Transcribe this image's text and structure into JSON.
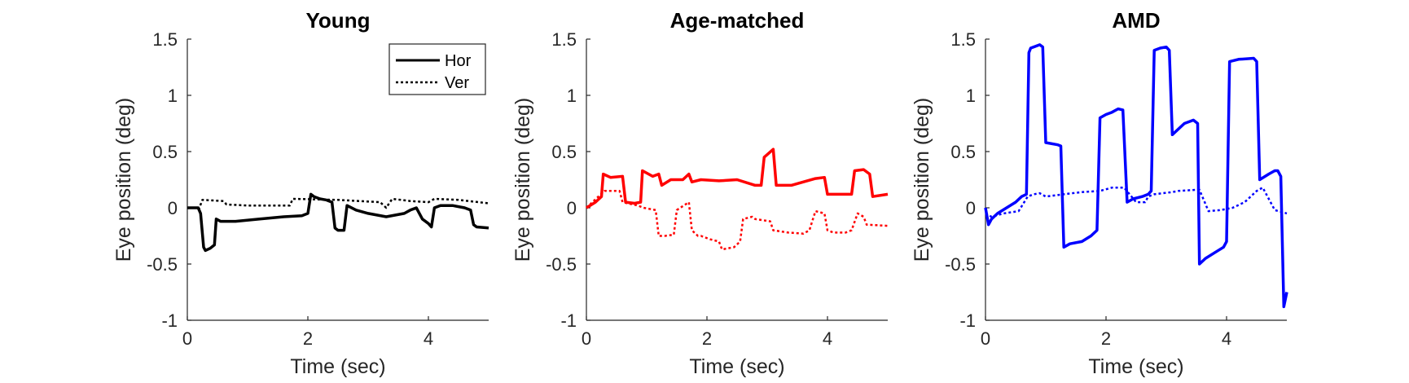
{
  "chart_data": [
    {
      "type": "line",
      "title": "Young",
      "xlabel": "Time (sec)",
      "ylabel": "Eye position (deg)",
      "xlim": [
        0,
        5
      ],
      "ylim": [
        -1,
        1.5
      ],
      "xticks": [
        "0",
        "2",
        "4"
      ],
      "yticks": [
        "-1",
        "-0.5",
        "0",
        "0.5",
        "1",
        "1.5"
      ],
      "grid": false,
      "color": "#000000",
      "legend": {
        "position": "top-right",
        "entries": [
          "Hor",
          "Ver"
        ]
      },
      "series": [
        {
          "name": "Hor",
          "style": "solid",
          "x": [
            0,
            0.18,
            0.22,
            0.27,
            0.3,
            0.38,
            0.45,
            0.48,
            0.55,
            0.8,
            1.2,
            1.6,
            1.9,
            2.0,
            2.05,
            2.1,
            2.2,
            2.3,
            2.4,
            2.45,
            2.5,
            2.6,
            2.65,
            2.8,
            3.0,
            3.3,
            3.6,
            3.7,
            3.8,
            3.9,
            4.0,
            4.05,
            4.1,
            4.2,
            4.4,
            4.6,
            4.7,
            4.75,
            4.8,
            5.0
          ],
          "y": [
            0,
            0.0,
            -0.05,
            -0.35,
            -0.38,
            -0.36,
            -0.33,
            -0.1,
            -0.12,
            -0.12,
            -0.1,
            -0.08,
            -0.07,
            -0.05,
            0.12,
            0.1,
            0.08,
            0.07,
            0.05,
            -0.18,
            -0.2,
            -0.2,
            0.02,
            -0.02,
            -0.05,
            -0.08,
            -0.05,
            -0.02,
            0.0,
            -0.1,
            -0.14,
            -0.17,
            0.0,
            0.02,
            0.02,
            0.0,
            -0.02,
            -0.15,
            -0.17,
            -0.18
          ]
        },
        {
          "name": "Ver",
          "style": "dotted",
          "x": [
            0,
            0.2,
            0.25,
            0.6,
            0.65,
            1.0,
            1.5,
            1.7,
            1.75,
            2.5,
            3.2,
            3.3,
            3.4,
            3.7,
            4.0,
            4.1,
            4.5,
            5.0
          ],
          "y": [
            0.0,
            0.0,
            0.07,
            0.06,
            0.03,
            0.02,
            0.02,
            0.02,
            0.08,
            0.07,
            0.05,
            0.0,
            0.08,
            0.06,
            0.05,
            0.08,
            0.07,
            0.04
          ]
        }
      ]
    },
    {
      "type": "line",
      "title": "Age-matched",
      "xlabel": "Time (sec)",
      "ylabel": "Eye position (deg)",
      "xlim": [
        0,
        5
      ],
      "ylim": [
        -1,
        1.5
      ],
      "xticks": [
        "0",
        "2",
        "4"
      ],
      "yticks": [
        "-1",
        "-0.5",
        "0",
        "0.5",
        "1",
        "1.5"
      ],
      "grid": false,
      "color": "#ff0000",
      "series": [
        {
          "style": "solid",
          "x": [
            0,
            0.15,
            0.25,
            0.28,
            0.4,
            0.6,
            0.65,
            0.8,
            0.9,
            0.93,
            1.1,
            1.2,
            1.25,
            1.4,
            1.6,
            1.7,
            1.75,
            1.9,
            2.2,
            2.5,
            2.8,
            2.9,
            2.95,
            3.1,
            3.15,
            3.4,
            3.8,
            3.95,
            4.0,
            4.3,
            4.4,
            4.45,
            4.6,
            4.7,
            4.75,
            5.0
          ],
          "y": [
            0.0,
            0.05,
            0.1,
            0.3,
            0.27,
            0.28,
            0.05,
            0.04,
            0.05,
            0.33,
            0.28,
            0.3,
            0.2,
            0.25,
            0.25,
            0.3,
            0.23,
            0.25,
            0.24,
            0.25,
            0.2,
            0.2,
            0.45,
            0.52,
            0.2,
            0.2,
            0.26,
            0.27,
            0.12,
            0.12,
            0.12,
            0.33,
            0.34,
            0.3,
            0.1,
            0.12
          ]
        },
        {
          "style": "dotted",
          "x": [
            0,
            0.2,
            0.3,
            0.55,
            0.6,
            0.85,
            0.95,
            1.15,
            1.2,
            1.3,
            1.45,
            1.5,
            1.7,
            1.75,
            1.85,
            1.9,
            2.05,
            2.2,
            2.25,
            2.45,
            2.55,
            2.6,
            2.75,
            2.8,
            3.05,
            3.1,
            3.35,
            3.6,
            3.7,
            3.8,
            3.95,
            4.0,
            4.1,
            4.3,
            4.4,
            4.5,
            4.6,
            4.65,
            5.0
          ],
          "y": [
            0.0,
            0.1,
            0.15,
            0.15,
            0.05,
            0.02,
            0.0,
            -0.02,
            -0.25,
            -0.25,
            -0.24,
            -0.02,
            0.05,
            -0.2,
            -0.25,
            -0.25,
            -0.28,
            -0.3,
            -0.37,
            -0.35,
            -0.3,
            -0.1,
            -0.08,
            -0.1,
            -0.12,
            -0.2,
            -0.22,
            -0.23,
            -0.2,
            -0.03,
            -0.05,
            -0.2,
            -0.22,
            -0.22,
            -0.2,
            -0.05,
            -0.08,
            -0.15,
            -0.16
          ]
        }
      ]
    },
    {
      "type": "line",
      "title": "AMD",
      "xlabel": "Time (sec)",
      "ylabel": "Eye position (deg)",
      "xlim": [
        0,
        5
      ],
      "ylim": [
        -1,
        1.5
      ],
      "xticks": [
        "0",
        "2",
        "4"
      ],
      "yticks": [
        "-1",
        "-0.5",
        "0",
        "0.5",
        "1",
        "1.5"
      ],
      "grid": false,
      "color": "#0000ff",
      "series": [
        {
          "style": "solid",
          "x": [
            0,
            0.05,
            0.1,
            0.2,
            0.35,
            0.5,
            0.6,
            0.68,
            0.72,
            0.75,
            0.9,
            0.95,
            1.0,
            1.2,
            1.25,
            1.3,
            1.4,
            1.6,
            1.75,
            1.85,
            1.9,
            2.0,
            2.1,
            2.2,
            2.28,
            2.35,
            2.45,
            2.6,
            2.7,
            2.75,
            2.8,
            2.9,
            3.0,
            3.05,
            3.1,
            3.3,
            3.45,
            3.52,
            3.55,
            3.65,
            3.8,
            3.95,
            4.0,
            4.05,
            4.2,
            4.45,
            4.5,
            4.55,
            4.7,
            4.8,
            4.85,
            4.9,
            4.95,
            5.0
          ],
          "y": [
            0.0,
            -0.15,
            -0.1,
            -0.05,
            0.0,
            0.05,
            0.1,
            0.12,
            1.38,
            1.42,
            1.45,
            1.43,
            0.58,
            0.56,
            0.55,
            -0.35,
            -0.32,
            -0.3,
            -0.25,
            -0.2,
            0.8,
            0.83,
            0.85,
            0.88,
            0.87,
            0.05,
            0.08,
            0.1,
            0.12,
            0.15,
            1.4,
            1.42,
            1.43,
            1.4,
            0.65,
            0.75,
            0.78,
            0.75,
            -0.5,
            -0.45,
            -0.4,
            -0.35,
            -0.3,
            1.3,
            1.32,
            1.33,
            1.3,
            0.25,
            0.3,
            0.33,
            0.33,
            0.28,
            -0.88,
            -0.75
          ]
        },
        {
          "style": "dotted",
          "x": [
            0,
            0.1,
            0.3,
            0.55,
            0.7,
            0.8,
            0.9,
            1.0,
            1.3,
            1.6,
            1.9,
            2.1,
            2.2,
            2.3,
            2.5,
            2.65,
            2.7,
            2.8,
            3.1,
            3.2,
            3.5,
            3.55,
            3.7,
            3.9,
            4.1,
            4.3,
            4.4,
            4.5,
            4.6,
            4.8,
            5.0
          ],
          "y": [
            -0.05,
            -0.08,
            -0.05,
            -0.03,
            0.1,
            0.12,
            0.13,
            0.1,
            0.12,
            0.14,
            0.15,
            0.18,
            0.18,
            0.18,
            0.05,
            0.05,
            0.1,
            0.12,
            0.14,
            0.15,
            0.16,
            0.16,
            -0.03,
            -0.02,
            0.0,
            0.05,
            0.1,
            0.15,
            0.18,
            -0.02,
            -0.05
          ]
        }
      ]
    }
  ]
}
